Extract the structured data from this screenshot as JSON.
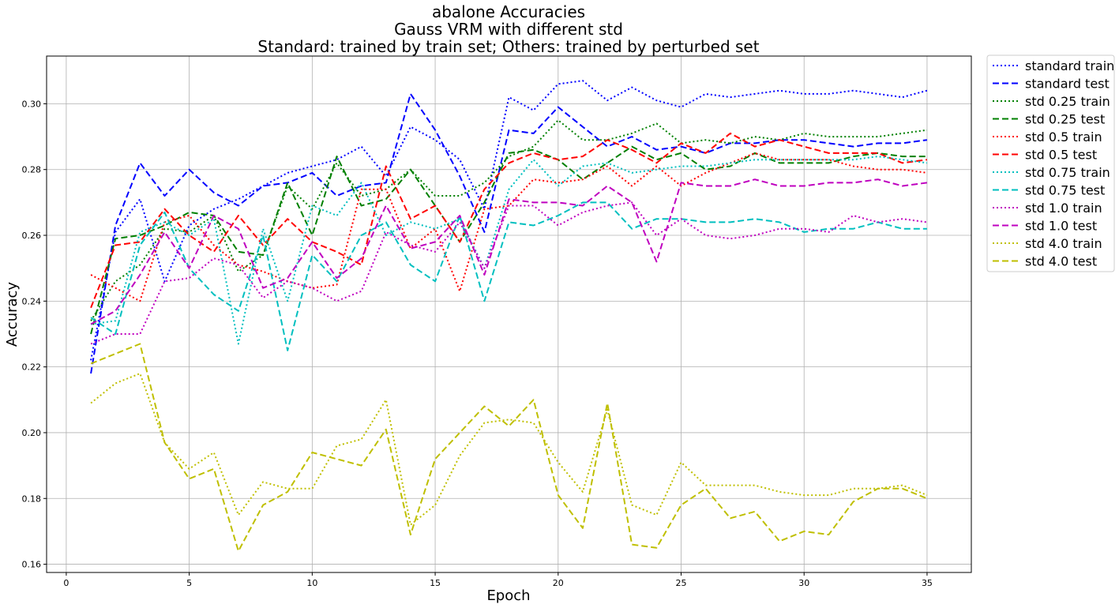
{
  "chart_data": {
    "type": "line",
    "title_lines": [
      "abalone Accuracies",
      "Gauss VRM with different std",
      "Standard: trained by train set; Others: trained by perturbed set"
    ],
    "xlabel": "Epoch",
    "ylabel": "Accuracy",
    "xlim": [
      -0.8,
      36.8
    ],
    "ylim": [
      0.1575,
      0.3145
    ],
    "xticks": [
      0,
      5,
      10,
      15,
      20,
      25,
      30,
      35
    ],
    "yticks": [
      0.16,
      0.18,
      0.2,
      0.22,
      0.24,
      0.26,
      0.28,
      0.3
    ],
    "xtick_labels": [
      "0",
      "5",
      "10",
      "15",
      "20",
      "25",
      "30",
      "35"
    ],
    "ytick_labels": [
      "0.16",
      "0.18",
      "0.20",
      "0.22",
      "0.24",
      "0.26",
      "0.28",
      "0.30"
    ],
    "grid": true,
    "legend_position": "outside-upper-right",
    "x": [
      1,
      2,
      3,
      4,
      5,
      6,
      7,
      8,
      9,
      10,
      11,
      12,
      13,
      14,
      15,
      16,
      17,
      18,
      19,
      20,
      21,
      22,
      23,
      24,
      25,
      26,
      27,
      28,
      29,
      30,
      31,
      32,
      33,
      34,
      35
    ],
    "series": [
      {
        "name": "standard train",
        "color": "#0000ff",
        "style": "dotted",
        "values": [
          0.222,
          0.261,
          0.271,
          0.246,
          0.263,
          0.268,
          0.271,
          0.275,
          0.279,
          0.281,
          0.283,
          0.287,
          0.278,
          0.293,
          0.289,
          0.283,
          0.268,
          0.302,
          0.298,
          0.306,
          0.307,
          0.301,
          0.305,
          0.301,
          0.299,
          0.303,
          0.302,
          0.303,
          0.304,
          0.303,
          0.303,
          0.304,
          0.303,
          0.302,
          0.304
        ]
      },
      {
        "name": "standard test",
        "color": "#0000ff",
        "style": "dashed",
        "values": [
          0.218,
          0.263,
          0.282,
          0.272,
          0.28,
          0.273,
          0.269,
          0.275,
          0.276,
          0.279,
          0.272,
          0.275,
          0.276,
          0.303,
          0.292,
          0.278,
          0.261,
          0.292,
          0.291,
          0.299,
          0.293,
          0.287,
          0.29,
          0.286,
          0.287,
          0.285,
          0.288,
          0.288,
          0.289,
          0.289,
          0.288,
          0.287,
          0.288,
          0.288,
          0.289
        ]
      },
      {
        "name": "std 0.25 train",
        "color": "#008000",
        "style": "dotted",
        "values": [
          0.234,
          0.246,
          0.251,
          0.262,
          0.261,
          0.266,
          0.249,
          0.254,
          0.275,
          0.268,
          0.282,
          0.272,
          0.274,
          0.28,
          0.272,
          0.272,
          0.276,
          0.284,
          0.287,
          0.295,
          0.289,
          0.289,
          0.291,
          0.294,
          0.288,
          0.289,
          0.288,
          0.29,
          0.289,
          0.291,
          0.29,
          0.29,
          0.29,
          0.291,
          0.292
        ]
      },
      {
        "name": "std 0.25 test",
        "color": "#008000",
        "style": "dashed",
        "values": [
          0.23,
          0.259,
          0.26,
          0.263,
          0.267,
          0.266,
          0.255,
          0.254,
          0.276,
          0.26,
          0.284,
          0.269,
          0.271,
          0.28,
          0.269,
          0.258,
          0.27,
          0.285,
          0.286,
          0.283,
          0.277,
          0.282,
          0.287,
          0.283,
          0.285,
          0.28,
          0.281,
          0.285,
          0.282,
          0.282,
          0.282,
          0.284,
          0.285,
          0.284,
          0.284
        ]
      },
      {
        "name": "std 0.5 train",
        "color": "#ff0000",
        "style": "dotted",
        "values": [
          0.248,
          0.244,
          0.24,
          0.264,
          0.266,
          0.257,
          0.251,
          0.249,
          0.246,
          0.244,
          0.245,
          0.274,
          0.274,
          0.256,
          0.262,
          0.243,
          0.268,
          0.269,
          0.277,
          0.276,
          0.277,
          0.281,
          0.275,
          0.281,
          0.275,
          0.279,
          0.282,
          0.285,
          0.283,
          0.283,
          0.283,
          0.281,
          0.28,
          0.28,
          0.279
        ]
      },
      {
        "name": "std 0.5 test",
        "color": "#ff0000",
        "style": "dashed",
        "values": [
          0.238,
          0.257,
          0.258,
          0.268,
          0.26,
          0.255,
          0.266,
          0.257,
          0.265,
          0.258,
          0.255,
          0.251,
          0.281,
          0.265,
          0.269,
          0.258,
          0.274,
          0.282,
          0.285,
          0.283,
          0.284,
          0.289,
          0.286,
          0.282,
          0.288,
          0.285,
          0.291,
          0.287,
          0.289,
          0.287,
          0.285,
          0.285,
          0.285,
          0.282,
          0.283
        ]
      },
      {
        "name": "std 0.75 train",
        "color": "#00bfbf",
        "style": "dotted",
        "values": [
          0.233,
          0.234,
          0.261,
          0.264,
          0.26,
          0.265,
          0.227,
          0.262,
          0.24,
          0.269,
          0.266,
          0.276,
          0.26,
          0.264,
          0.262,
          0.265,
          0.25,
          0.274,
          0.283,
          0.275,
          0.281,
          0.282,
          0.279,
          0.28,
          0.281,
          0.281,
          0.282,
          0.283,
          0.283,
          0.283,
          0.283,
          0.283,
          0.284,
          0.283,
          0.282
        ]
      },
      {
        "name": "std 0.75 test",
        "color": "#00bfbf",
        "style": "dashed",
        "values": [
          0.235,
          0.23,
          0.257,
          0.267,
          0.25,
          0.242,
          0.237,
          0.26,
          0.225,
          0.254,
          0.246,
          0.26,
          0.264,
          0.251,
          0.246,
          0.266,
          0.24,
          0.264,
          0.263,
          0.266,
          0.27,
          0.27,
          0.262,
          0.265,
          0.265,
          0.264,
          0.264,
          0.265,
          0.264,
          0.261,
          0.262,
          0.262,
          0.264,
          0.262,
          0.262
        ]
      },
      {
        "name": "std 1.0 train",
        "color": "#bf00bf",
        "style": "dotted",
        "values": [
          0.227,
          0.23,
          0.23,
          0.246,
          0.247,
          0.253,
          0.251,
          0.241,
          0.246,
          0.244,
          0.24,
          0.243,
          0.261,
          0.257,
          0.255,
          0.264,
          0.25,
          0.269,
          0.269,
          0.263,
          0.267,
          0.269,
          0.27,
          0.26,
          0.265,
          0.26,
          0.259,
          0.26,
          0.262,
          0.262,
          0.261,
          0.266,
          0.264,
          0.265,
          0.264
        ]
      },
      {
        "name": "std 1.0 test",
        "color": "#bf00bf",
        "style": "dashed",
        "values": [
          0.233,
          0.237,
          0.248,
          0.261,
          0.25,
          0.266,
          0.262,
          0.244,
          0.247,
          0.258,
          0.247,
          0.253,
          0.269,
          0.256,
          0.258,
          0.266,
          0.248,
          0.271,
          0.27,
          0.27,
          0.269,
          0.275,
          0.27,
          0.252,
          0.276,
          0.275,
          0.275,
          0.277,
          0.275,
          0.275,
          0.276,
          0.276,
          0.277,
          0.275,
          0.276
        ]
      },
      {
        "name": "std 4.0 train",
        "color": "#bfbf00",
        "style": "dotted",
        "values": [
          0.209,
          0.215,
          0.218,
          0.197,
          0.189,
          0.194,
          0.175,
          0.185,
          0.183,
          0.183,
          0.196,
          0.198,
          0.21,
          0.172,
          0.178,
          0.193,
          0.203,
          0.204,
          0.203,
          0.191,
          0.182,
          0.207,
          0.178,
          0.175,
          0.191,
          0.184,
          0.184,
          0.184,
          0.182,
          0.181,
          0.181,
          0.183,
          0.183,
          0.184,
          0.181
        ]
      },
      {
        "name": "std 4.0 test",
        "color": "#bfbf00",
        "style": "dashed",
        "values": [
          0.221,
          0.224,
          0.227,
          0.197,
          0.186,
          0.189,
          0.164,
          0.178,
          0.182,
          0.194,
          0.192,
          0.19,
          0.201,
          0.169,
          0.192,
          0.2,
          0.208,
          0.202,
          0.21,
          0.181,
          0.171,
          0.209,
          0.166,
          0.165,
          0.178,
          0.183,
          0.174,
          0.176,
          0.167,
          0.17,
          0.169,
          0.179,
          0.183,
          0.183,
          0.18
        ]
      }
    ]
  }
}
